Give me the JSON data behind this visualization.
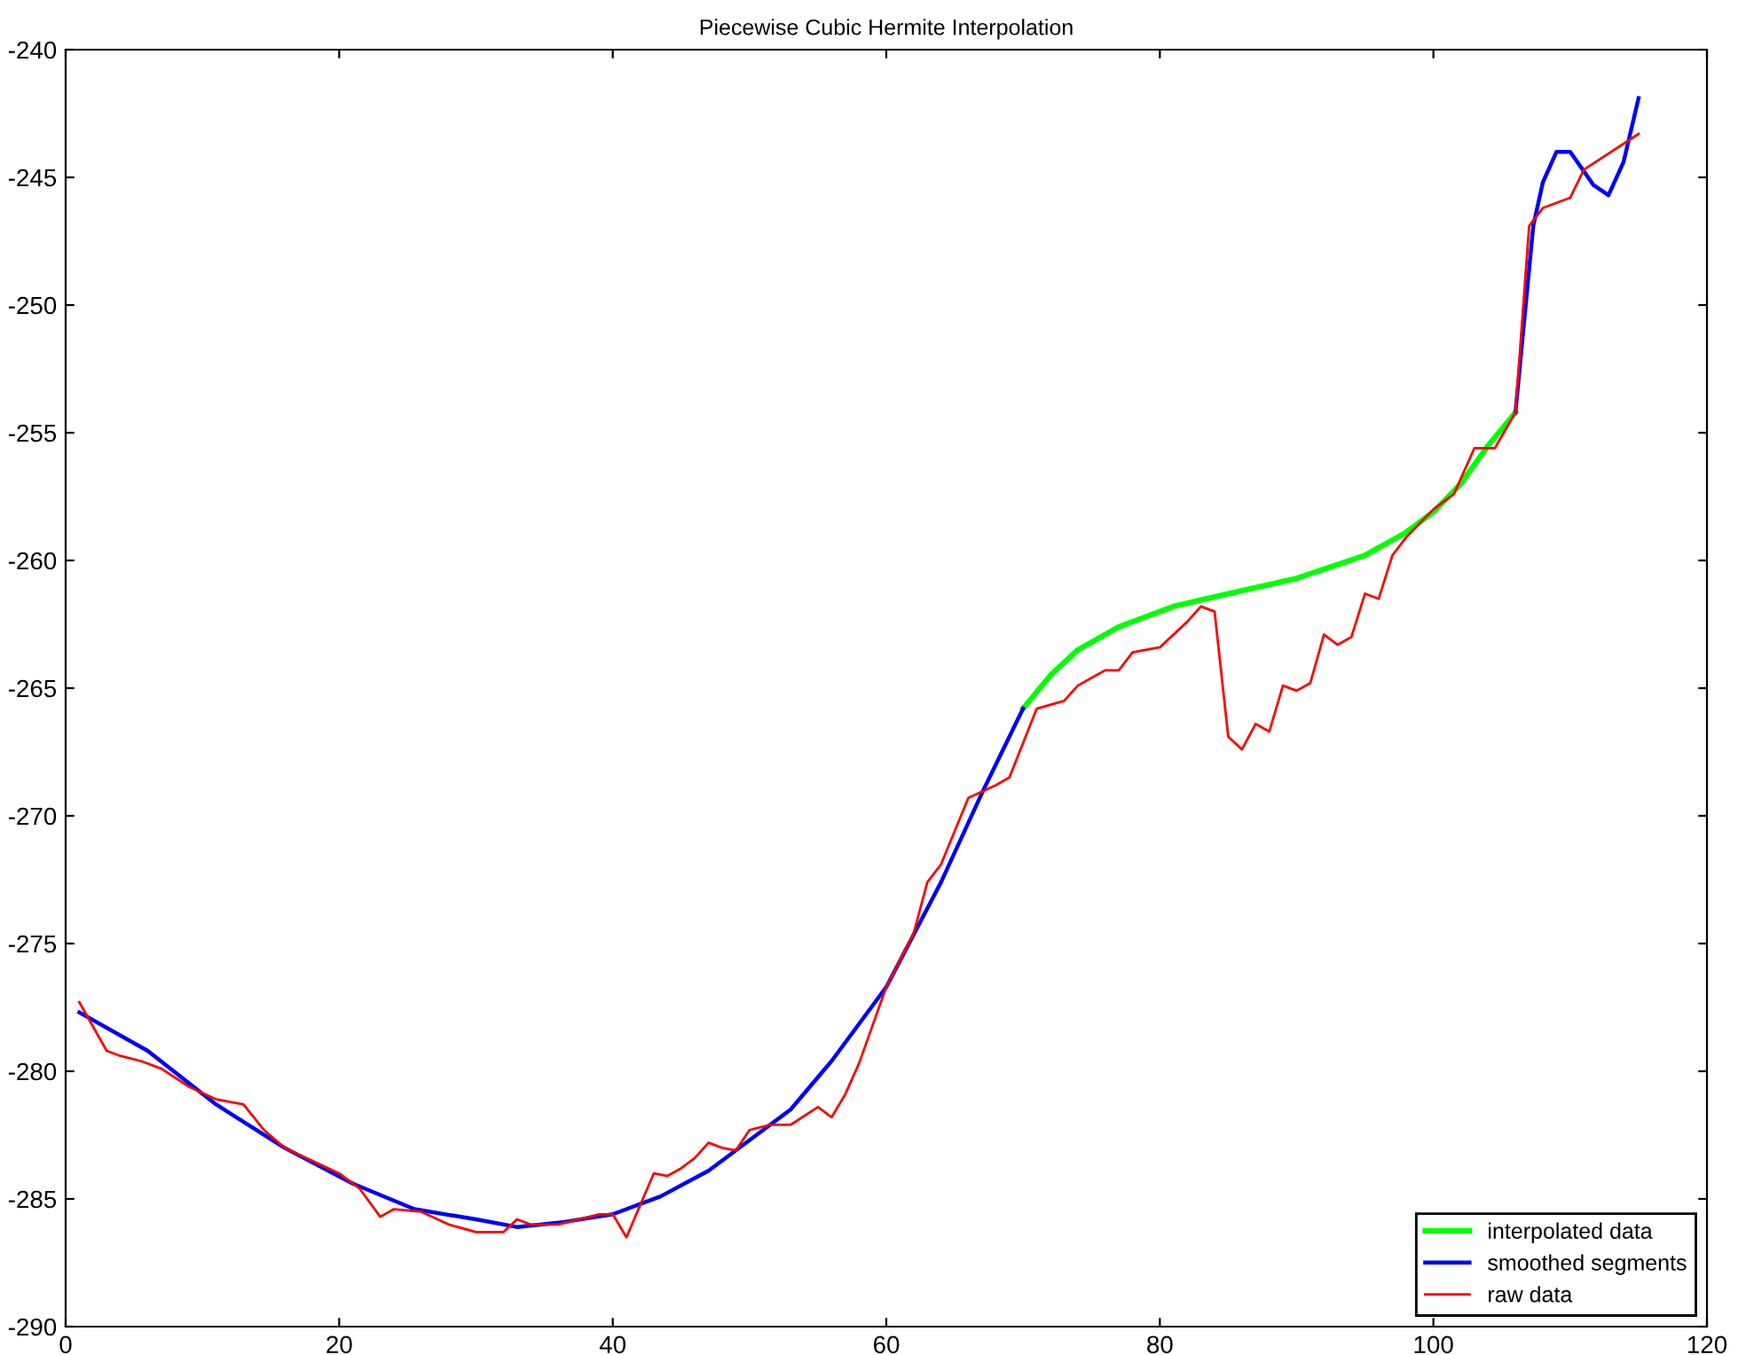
{
  "chart_data": {
    "type": "line",
    "title": "Piecewise Cubic Hermite Interpolation",
    "xlim": [
      0,
      120
    ],
    "xticks": [
      0,
      20,
      40,
      60,
      80,
      100,
      120
    ],
    "ylim": [
      -290,
      -240
    ],
    "yticks": [
      -290,
      -285,
      -280,
      -275,
      -270,
      -265,
      -260,
      -255,
      -250,
      -245,
      -240
    ],
    "grid": false,
    "legend": "bottom right",
    "marker": "none",
    "line_style": "solid",
    "series": [
      {
        "name": "interpolated data",
        "color": "#00ff00",
        "x": [
          70,
          72,
          74,
          77,
          81,
          85,
          90,
          95,
          98,
          100,
          102,
          104,
          106
        ],
        "values": [
          -265.8,
          -264.5,
          -263.5,
          -262.6,
          -261.8,
          -261.3,
          -260.7,
          -259.8,
          -258.9,
          -258.1,
          -257.0,
          -255.5,
          -254.2
        ]
      },
      {
        "name": "smoothed segments",
        "color": "#0000ff",
        "x": [
          1,
          6,
          11,
          16,
          21,
          25.5,
          30,
          33,
          36.5,
          40,
          43.5,
          47,
          50,
          53,
          56,
          60,
          64,
          67,
          70,
          null,
          106,
          107.3,
          108,
          109,
          110,
          111.7,
          112.8,
          113.9,
          115
        ],
        "values": [
          -277.7,
          -279.2,
          -281.3,
          -283.0,
          -284.4,
          -285.4,
          -285.8,
          -286.1,
          -285.9,
          -285.6,
          -284.9,
          -283.9,
          -282.7,
          -281.5,
          -279.6,
          -276.7,
          -272.6,
          -269.1,
          -265.8,
          null,
          -254.2,
          -246.9,
          -245.2,
          -244.0,
          -244.0,
          -245.3,
          -245.7,
          -244.4,
          -241.9
        ]
      },
      {
        "name": "raw data",
        "color": "#ff0000",
        "x": [
          1,
          3,
          4,
          5.5,
          7,
          9,
          11,
          13,
          14.5,
          16,
          18,
          20,
          21.5,
          23,
          24,
          26,
          28,
          30,
          32,
          33,
          34,
          36,
          37.5,
          39,
          40,
          41,
          43,
          44,
          45,
          46,
          47,
          48,
          49,
          50,
          51.5,
          53,
          55,
          56,
          57,
          58,
          60,
          62,
          63,
          64,
          66,
          68,
          69,
          71,
          73,
          74,
          76,
          77,
          78,
          80,
          82,
          83,
          84,
          85,
          86,
          87,
          88,
          89,
          90,
          91,
          92,
          93,
          94,
          95,
          96,
          97,
          98,
          100,
          101.5,
          103,
          104.5,
          106,
          107,
          108,
          110,
          111,
          115
        ],
        "values": [
          -277.3,
          -279.2,
          -279.4,
          -279.6,
          -279.9,
          -280.6,
          -281.1,
          -281.3,
          -282.3,
          -283.0,
          -283.5,
          -284.0,
          -284.6,
          -285.7,
          -285.4,
          -285.5,
          -286.0,
          -286.3,
          -286.3,
          -285.8,
          -286.0,
          -286.0,
          -285.8,
          -285.6,
          -285.6,
          -286.5,
          -284.0,
          -284.1,
          -283.8,
          -283.4,
          -282.8,
          -283.0,
          -283.1,
          -282.3,
          -282.1,
          -282.1,
          -281.4,
          -281.8,
          -280.9,
          -279.7,
          -276.7,
          -274.6,
          -272.6,
          -271.9,
          -269.3,
          -268.8,
          -268.5,
          -265.8,
          -265.5,
          -264.9,
          -264.3,
          -264.3,
          -263.6,
          -263.4,
          -262.4,
          -261.8,
          -262.0,
          -266.9,
          -267.4,
          -266.4,
          -266.7,
          -264.9,
          -265.1,
          -264.8,
          -262.9,
          -263.3,
          -263.0,
          -261.3,
          -261.5,
          -259.8,
          -259.1,
          -258.0,
          -257.4,
          -255.6,
          -255.6,
          -254.2,
          -246.9,
          -246.2,
          -245.8,
          -244.7,
          -243.3
        ]
      }
    ]
  }
}
